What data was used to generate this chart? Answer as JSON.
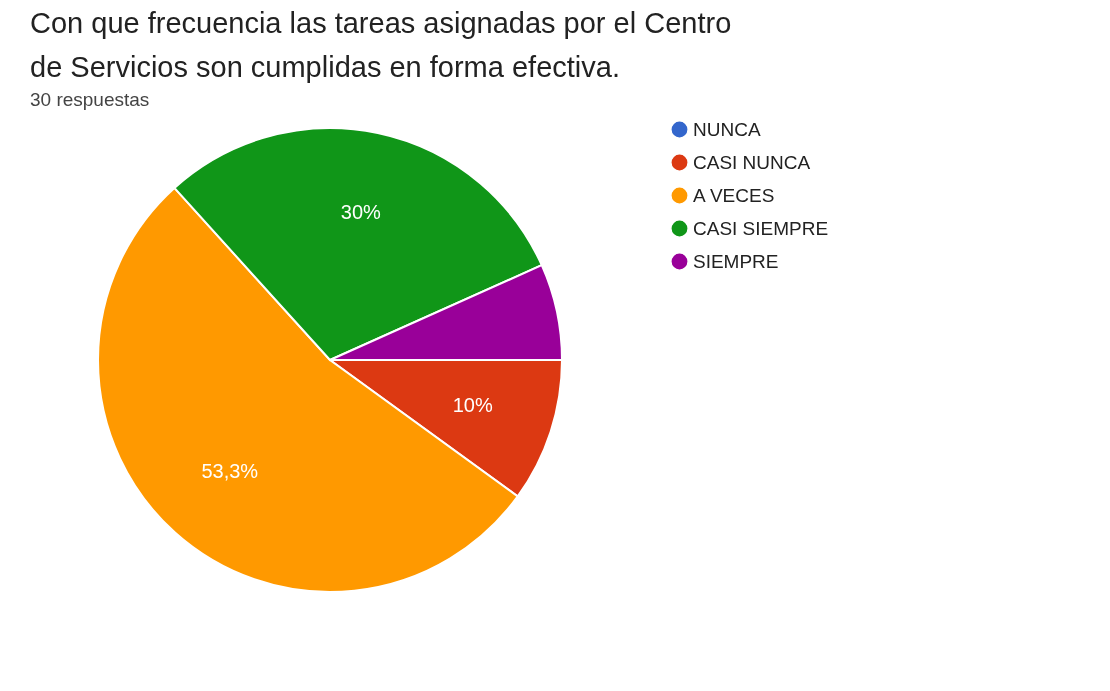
{
  "chart_data": {
    "type": "pie",
    "title": "Con que frecuencia las tareas asignadas por el Centro de Servicios son cumplidas en  forma efectiva.",
    "subtitle": "30 respuestas",
    "categories": [
      "NUNCA",
      "CASI NUNCA",
      "A VECES",
      "CASI SIEMPRE",
      "SIEMPRE"
    ],
    "values": [
      0,
      10,
      53.3,
      30,
      6.7
    ],
    "colors": [
      "#3366cc",
      "#dc3912",
      "#ff9900",
      "#109618",
      "#990099"
    ],
    "value_labels": [
      null,
      "10%",
      "53,3%",
      "30%",
      null
    ],
    "legend": "right"
  }
}
